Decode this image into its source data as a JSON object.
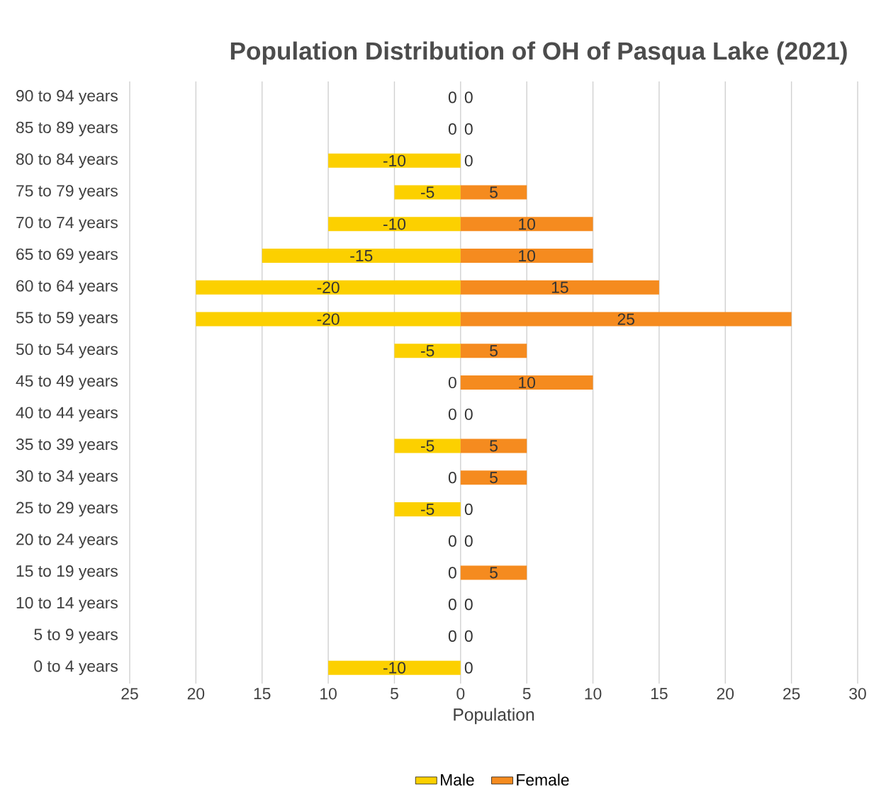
{
  "chart_data": {
    "type": "bar",
    "orientation": "horizontal",
    "title": "Population Distribution of OH of Pasqua Lake (2021)",
    "xlabel": "Population",
    "categories": [
      "90 to 94 years",
      "85 to 89 years",
      "80 to 84 years",
      "75 to 79 years",
      "70 to 74 years",
      "65 to 69 years",
      "60 to 64 years",
      "55 to 59 years",
      "50 to 54 years",
      "45 to 49 years",
      "40 to 44 years",
      "35 to 39 years",
      "30 to 34 years",
      "25 to 29 years",
      "20 to 24 years",
      "15 to 19 years",
      "10 to 14 years",
      "5 to 9 years",
      "0 to 4 years"
    ],
    "series": [
      {
        "name": "Male",
        "color": "#fcd000",
        "values": [
          0,
          0,
          -10,
          -5,
          -10,
          -15,
          -20,
          -20,
          -5,
          0,
          0,
          -5,
          0,
          -5,
          0,
          0,
          0,
          0,
          -10
        ]
      },
      {
        "name": "Female",
        "color": "#f58b1f",
        "values": [
          0,
          0,
          0,
          5,
          10,
          10,
          15,
          25,
          5,
          10,
          0,
          5,
          5,
          0,
          0,
          5,
          0,
          0,
          0
        ]
      }
    ],
    "xlim": [
      -25,
      30
    ],
    "xticks": [
      {
        "value": -25,
        "label": "25"
      },
      {
        "value": -20,
        "label": "20"
      },
      {
        "value": -15,
        "label": "15"
      },
      {
        "value": -10,
        "label": "10"
      },
      {
        "value": -5,
        "label": "5"
      },
      0,
      5,
      10,
      15,
      20,
      25,
      30
    ],
    "grid": "x",
    "legend": "bottom",
    "data_labels": true
  }
}
